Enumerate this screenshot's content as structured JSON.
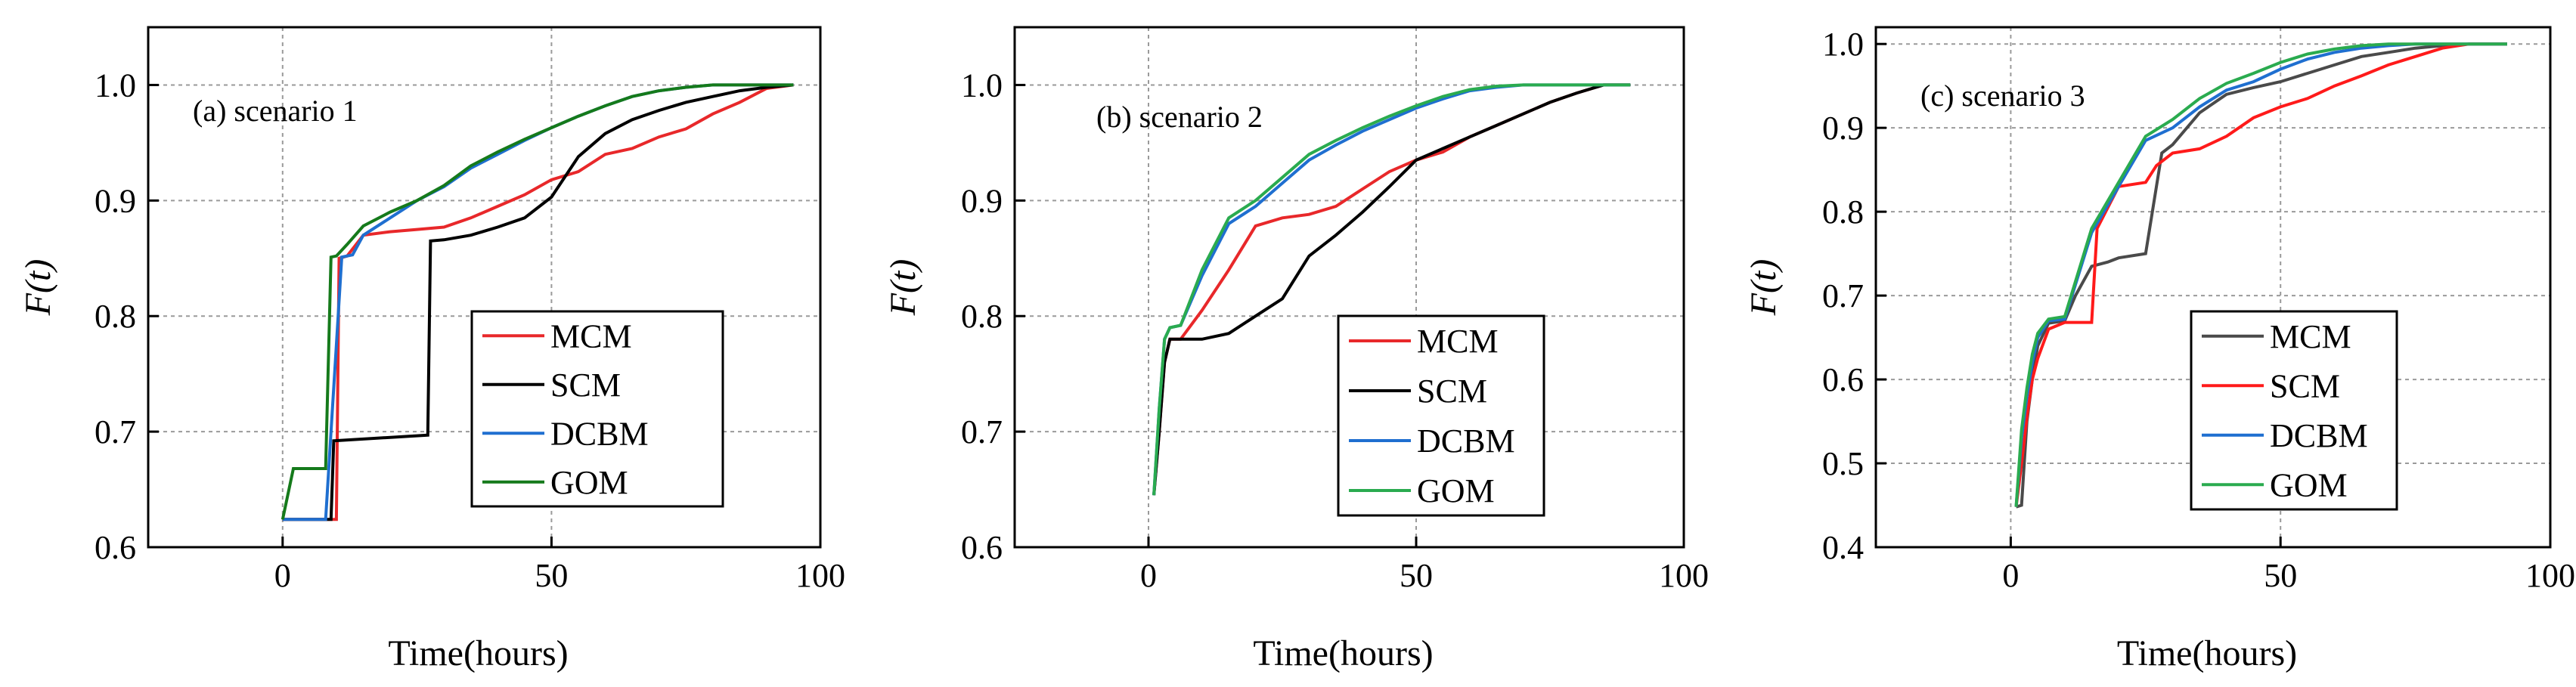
{
  "figure": {
    "charts": [
      {
        "type": "line",
        "panel_label": "(a) scenario 1",
        "xlabel": "Time(hours)",
        "ylabel": "F(t)",
        "xlim": [
          -25,
          100
        ],
        "ylim": [
          0.6,
          1.05
        ],
        "xticks": [
          0,
          50,
          100
        ],
        "yticks": [
          0.6,
          0.7,
          0.8,
          0.9,
          1.0
        ],
        "xtick_labels": [
          "0",
          "50",
          "100"
        ],
        "ytick_labels": [
          "0.6",
          "0.7",
          "0.8",
          "0.9",
          "1.0"
        ],
        "grid": true,
        "legend": "lower-right",
        "series": [
          {
            "name": "MCM",
            "color": "#e8282a",
            "x": [
              0,
              10,
              10.5,
              12,
              15,
              20,
              25,
              30,
              35,
              40,
              45,
              50,
              55,
              60,
              65,
              70,
              75,
              80,
              85,
              90,
              95
            ],
            "y": [
              0.624,
              0.624,
              0.85,
              0.852,
              0.87,
              0.873,
              0.875,
              0.877,
              0.885,
              0.895,
              0.905,
              0.918,
              0.925,
              0.94,
              0.945,
              0.955,
              0.962,
              0.975,
              0.985,
              0.997,
              1.0
            ]
          },
          {
            "name": "SCM",
            "color": "#000000",
            "x": [
              0,
              9,
              9.5,
              27,
              27.5,
              30,
              35,
              40,
              45,
              50,
              55,
              60,
              65,
              70,
              75,
              80,
              85,
              90,
              95
            ],
            "y": [
              0.624,
              0.624,
              0.692,
              0.697,
              0.865,
              0.866,
              0.87,
              0.877,
              0.885,
              0.903,
              0.938,
              0.958,
              0.97,
              0.978,
              0.985,
              0.99,
              0.995,
              0.998,
              1.0
            ]
          },
          {
            "name": "DCBM",
            "color": "#1f6fd0",
            "x": [
              0,
              8,
              9,
              10,
              11,
              13,
              15,
              20,
              25,
              30,
              35,
              40,
              45,
              50,
              55,
              60,
              65,
              70,
              75,
              80,
              85,
              95
            ],
            "y": [
              0.624,
              0.624,
              0.7,
              0.775,
              0.851,
              0.853,
              0.87,
              0.885,
              0.9,
              0.912,
              0.928,
              0.94,
              0.952,
              0.963,
              0.973,
              0.982,
              0.99,
              0.995,
              0.998,
              1.0,
              1.0,
              1.0
            ]
          },
          {
            "name": "GOM",
            "color": "#157a1b",
            "x": [
              0,
              2,
              8,
              9,
              10,
              12,
              15,
              20,
              25,
              30,
              35,
              40,
              45,
              50,
              55,
              60,
              65,
              70,
              75,
              80,
              95
            ],
            "y": [
              0.624,
              0.668,
              0.668,
              0.851,
              0.852,
              0.862,
              0.878,
              0.89,
              0.9,
              0.913,
              0.93,
              0.942,
              0.953,
              0.963,
              0.973,
              0.982,
              0.99,
              0.995,
              0.998,
              1.0,
              1.0
            ]
          }
        ]
      },
      {
        "type": "line",
        "panel_label": "(b) scenario 2",
        "xlabel": "Time(hours)",
        "ylabel": "F(t)",
        "xlim": [
          -25,
          100
        ],
        "ylim": [
          0.6,
          1.05
        ],
        "xticks": [
          0,
          50,
          100
        ],
        "yticks": [
          0.6,
          0.7,
          0.8,
          0.9,
          1.0
        ],
        "xtick_labels": [
          "0",
          "50",
          "100"
        ],
        "ytick_labels": [
          "0.6",
          "0.7",
          "0.8",
          "0.9",
          "1.0"
        ],
        "grid": true,
        "legend": "lower-right",
        "series": [
          {
            "name": "MCM",
            "color": "#e8282a",
            "x": [
              1,
              2,
              3,
              4,
              6,
              10,
              15,
              20,
              25,
              30,
              35,
              40,
              45,
              50,
              55,
              60,
              65,
              70,
              75,
              80,
              85,
              90
            ],
            "y": [
              0.645,
              0.7,
              0.76,
              0.78,
              0.78,
              0.805,
              0.84,
              0.878,
              0.885,
              0.888,
              0.895,
              0.91,
              0.925,
              0.935,
              0.942,
              0.955,
              0.965,
              0.975,
              0.985,
              0.993,
              1.0,
              1.0
            ]
          },
          {
            "name": "SCM",
            "color": "#000000",
            "x": [
              1,
              2,
              3,
              4,
              10,
              15,
              20,
              25,
              30,
              35,
              40,
              45,
              50,
              55,
              60,
              65,
              70,
              75,
              80,
              85,
              90
            ],
            "y": [
              0.645,
              0.7,
              0.76,
              0.78,
              0.78,
              0.785,
              0.8,
              0.815,
              0.852,
              0.87,
              0.89,
              0.912,
              0.935,
              0.945,
              0.955,
              0.965,
              0.975,
              0.985,
              0.993,
              1.0,
              1.0
            ]
          },
          {
            "name": "DCBM",
            "color": "#1f6fd0",
            "x": [
              1,
              2,
              3,
              4,
              6,
              10,
              15,
              20,
              25,
              30,
              35,
              40,
              45,
              50,
              55,
              60,
              65,
              70,
              75,
              80,
              90
            ],
            "y": [
              0.645,
              0.72,
              0.78,
              0.79,
              0.792,
              0.835,
              0.88,
              0.895,
              0.915,
              0.935,
              0.948,
              0.96,
              0.97,
              0.98,
              0.988,
              0.995,
              0.998,
              1.0,
              1.0,
              1.0,
              1.0
            ]
          },
          {
            "name": "GOM",
            "color": "#2aab4f",
            "x": [
              1,
              2,
              3,
              4,
              6,
              10,
              15,
              20,
              25,
              30,
              35,
              40,
              45,
              50,
              55,
              60,
              65,
              70,
              75,
              80,
              90
            ],
            "y": [
              0.645,
              0.72,
              0.78,
              0.79,
              0.792,
              0.84,
              0.885,
              0.9,
              0.92,
              0.94,
              0.952,
              0.963,
              0.973,
              0.982,
              0.99,
              0.996,
              0.999,
              1.0,
              1.0,
              1.0,
              1.0
            ]
          }
        ]
      },
      {
        "type": "line",
        "panel_label": "(c) scenario 3",
        "xlabel": "Time(hours)",
        "ylabel": "F(t)",
        "xlim": [
          -25,
          100
        ],
        "ylim": [
          0.4,
          1.02
        ],
        "xticks": [
          0,
          50,
          100
        ],
        "yticks": [
          0.4,
          0.5,
          0.6,
          0.7,
          0.8,
          0.9,
          1.0
        ],
        "xtick_labels": [
          "0",
          "50",
          "100"
        ],
        "ytick_labels": [
          "0.4",
          "0.5",
          "0.6",
          "0.7",
          "0.8",
          "0.9",
          "1.0"
        ],
        "grid": true,
        "legend": "lower-right",
        "series": [
          {
            "name": "MCM",
            "color": "#4a4a4a",
            "x": [
              1,
              2,
              3,
              4,
              5,
              7,
              10,
              12,
              15,
              18,
              20,
              25,
              28,
              30,
              35,
              40,
              45,
              50,
              55,
              60,
              65,
              70,
              75,
              80,
              85,
              92
            ],
            "y": [
              0.448,
              0.45,
              0.55,
              0.6,
              0.64,
              0.667,
              0.67,
              0.7,
              0.735,
              0.74,
              0.745,
              0.75,
              0.87,
              0.88,
              0.918,
              0.94,
              0.948,
              0.955,
              0.965,
              0.975,
              0.985,
              0.99,
              0.995,
              0.998,
              1.0,
              1.0
            ]
          },
          {
            "name": "SCM",
            "color": "#ff1a1a",
            "x": [
              1,
              2,
              3,
              4,
              5,
              7,
              10,
              15,
              16,
              20,
              25,
              27,
              30,
              35,
              40,
              45,
              50,
              55,
              60,
              65,
              70,
              75,
              80,
              85,
              92
            ],
            "y": [
              0.448,
              0.5,
              0.555,
              0.6,
              0.625,
              0.66,
              0.668,
              0.668,
              0.78,
              0.83,
              0.835,
              0.855,
              0.87,
              0.875,
              0.89,
              0.912,
              0.925,
              0.935,
              0.95,
              0.962,
              0.975,
              0.985,
              0.995,
              1.0,
              1.0
            ]
          },
          {
            "name": "DCBM",
            "color": "#1f6fd0",
            "x": [
              1,
              2,
              3,
              4,
              5,
              7,
              10,
              15,
              20,
              25,
              30,
              35,
              40,
              45,
              50,
              55,
              60,
              65,
              70,
              75,
              80,
              92
            ],
            "y": [
              0.448,
              0.53,
              0.58,
              0.62,
              0.65,
              0.67,
              0.672,
              0.775,
              0.83,
              0.885,
              0.9,
              0.925,
              0.945,
              0.955,
              0.97,
              0.982,
              0.99,
              0.995,
              0.998,
              1.0,
              1.0,
              1.0
            ]
          },
          {
            "name": "GOM",
            "color": "#2aab4f",
            "x": [
              1,
              2,
              3,
              4,
              5,
              7,
              10,
              15,
              20,
              25,
              30,
              35,
              40,
              45,
              50,
              55,
              60,
              65,
              70,
              75,
              80,
              92
            ],
            "y": [
              0.448,
              0.54,
              0.59,
              0.63,
              0.655,
              0.672,
              0.675,
              0.78,
              0.835,
              0.89,
              0.91,
              0.935,
              0.953,
              0.965,
              0.978,
              0.988,
              0.994,
              0.998,
              1.0,
              1.0,
              1.0,
              1.0
            ]
          }
        ]
      }
    ]
  },
  "chart_data": [
    {
      "type": "line",
      "title": "(a) scenario 1",
      "xlabel": "Time(hours)",
      "ylabel": "F(t)",
      "xlim": [
        -25,
        100
      ],
      "ylim": [
        0.6,
        1.05
      ]
    },
    {
      "type": "line",
      "title": "(b) scenario 2",
      "xlabel": "Time(hours)",
      "ylabel": "F(t)",
      "xlim": [
        -25,
        100
      ],
      "ylim": [
        0.6,
        1.05
      ]
    },
    {
      "type": "line",
      "title": "(c) scenario 3",
      "xlabel": "Time(hours)",
      "ylabel": "F(t)",
      "xlim": [
        -25,
        100
      ],
      "ylim": [
        0.4,
        1.02
      ]
    }
  ]
}
